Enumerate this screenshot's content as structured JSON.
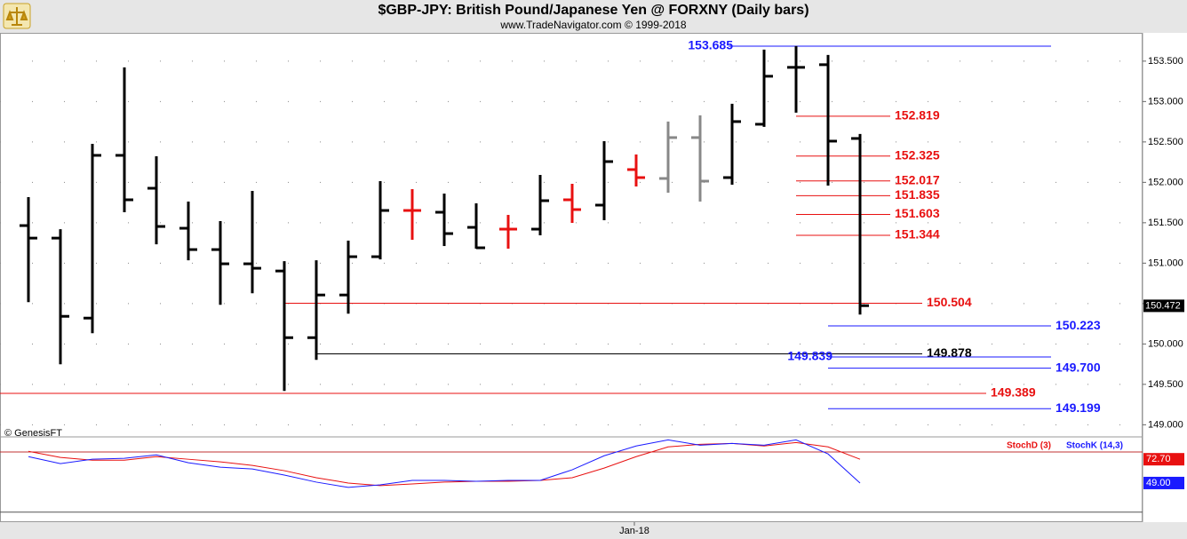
{
  "chart_data": [
    {
      "type": "ohlc",
      "title": "$GBP-JPY:  British Pound/Japanese Yen @ FORXNY  (Daily bars)",
      "subtitle": "www.TradeNavigator.com © 1999-2018",
      "source": "© GenesisFT",
      "categories": [
        null,
        null,
        null,
        null,
        null,
        null,
        null,
        null,
        null,
        null,
        null,
        null,
        null,
        null,
        null,
        null,
        null,
        null,
        null,
        "Jan-18",
        null,
        null,
        null,
        null,
        null,
        null,
        null
      ],
      "open": [
        151.465,
        151.31,
        150.32,
        152.334,
        151.927,
        151.432,
        151.168,
        150.992,
        150.903,
        150.078,
        150.606,
        151.08,
        151.652,
        151.63,
        151.443,
        151.421,
        151.421,
        151.784,
        151.718,
        152.158,
        152.048,
        152.554,
        152.059,
        152.719,
        153.423,
        153.456,
        152.543
      ],
      "high": [
        151.817,
        151.42,
        152.477,
        153.423,
        152.323,
        151.762,
        151.52,
        151.894,
        151.025,
        151.036,
        151.278,
        152.015,
        151.916,
        151.861,
        151.74,
        151.597,
        152.092,
        151.982,
        152.51,
        152.345,
        152.752,
        152.829,
        152.972,
        153.643,
        153.687,
        153.577,
        152.598
      ],
      "low": [
        150.518,
        149.748,
        150.133,
        151.63,
        151.233,
        151.036,
        150.485,
        150.628,
        149.418,
        149.803,
        150.375,
        151.047,
        151.289,
        151.212,
        151.179,
        151.179,
        151.344,
        151.498,
        151.531,
        151.949,
        151.872,
        151.762,
        151.971,
        152.686,
        152.862,
        151.96,
        150.364
      ],
      "close": [
        151.31,
        150.342,
        152.334,
        151.784,
        151.454,
        151.168,
        150.992,
        150.937,
        150.078,
        150.606,
        151.08,
        151.652,
        151.652,
        151.366,
        151.19,
        151.421,
        151.773,
        151.663,
        152.257,
        152.059,
        152.554,
        152.015,
        152.752,
        153.313,
        153.423,
        152.51,
        150.474
      ],
      "bar_colors": [
        "#000000",
        "#000000",
        "#000000",
        "#000000",
        "#000000",
        "#000000",
        "#000000",
        "#000000",
        "#000000",
        "#000000",
        "#000000",
        "#000000",
        "#e81010",
        "#000000",
        "#000000",
        "#e81010",
        "#000000",
        "#e81010",
        "#000000",
        "#e81010",
        "#888888",
        "#888888",
        "#000000",
        "#000000",
        "#000000",
        "#000000",
        "#000000"
      ],
      "ylim": [
        148.85,
        153.85
      ],
      "yticks": [
        {
          "value": 149,
          "label": "149.000"
        },
        {
          "value": 149.5,
          "label": "149.500"
        },
        {
          "value": 150,
          "label": "150.000"
        },
        {
          "value": 150.5,
          "label": "150.500"
        },
        {
          "value": 151,
          "label": "151.000"
        },
        {
          "value": 151.5,
          "label": "151.500"
        },
        {
          "value": 152,
          "label": "152.000"
        },
        {
          "value": 152.5,
          "label": "152.500"
        },
        {
          "value": 153,
          "label": "153.000"
        },
        {
          "value": 153.5,
          "label": "153.500"
        }
      ],
      "last_price": 150.472,
      "levels": [
        {
          "value": 153.685,
          "label": "153.685",
          "color": "#1a1aff"
        },
        {
          "value": 152.819,
          "label": "152.819",
          "color": "#e81010"
        },
        {
          "value": 152.325,
          "label": "152.325",
          "color": "#e81010"
        },
        {
          "value": 152.017,
          "label": "152.017",
          "color": "#e81010"
        },
        {
          "value": 151.835,
          "label": "151.835",
          "color": "#e81010"
        },
        {
          "value": 151.603,
          "label": "151.603",
          "color": "#e81010"
        },
        {
          "value": 151.344,
          "label": "151.344",
          "color": "#e81010"
        },
        {
          "value": 150.504,
          "label": "150.504",
          "color": "#e81010"
        },
        {
          "value": 150.223,
          "label": "150.223",
          "color": "#1a1aff"
        },
        {
          "value": 149.878,
          "label": "149.878",
          "color": "#000000"
        },
        {
          "value": 149.839,
          "label": "149.839",
          "color": "#1a1aff"
        },
        {
          "value": 149.7,
          "label": "149.700",
          "color": "#1a1aff"
        },
        {
          "value": 149.389,
          "label": "149.389",
          "color": "#e81010"
        },
        {
          "value": 149.199,
          "label": "149.199",
          "color": "#1a1aff"
        }
      ]
    },
    {
      "type": "line",
      "ylim": [
        10,
        95
      ],
      "reference_lines": [
        80,
        20
      ],
      "series": [
        {
          "name": "StochD (3)",
          "color": "#e81010",
          "last_label": "72.70",
          "values": [
            80.6,
            74.5,
            71.8,
            71.8,
            75.3,
            72.7,
            70.1,
            66.6,
            61.3,
            54.3,
            49.0,
            46.4,
            48.1,
            49.9,
            50.7,
            50.7,
            51.6,
            54.3,
            63.9,
            75.3,
            85.0,
            87.6,
            88.5,
            85.9,
            89.4,
            85.0,
            72.7
          ]
        },
        {
          "name": "StochK (14,3)",
          "color": "#1a1aff",
          "last_label": "49.00",
          "values": [
            75.3,
            68.3,
            72.7,
            73.6,
            77.1,
            69.2,
            64.8,
            63.0,
            56.9,
            49.9,
            44.6,
            47.2,
            51.6,
            51.6,
            50.7,
            51.6,
            51.6,
            62.2,
            76.2,
            85.9,
            92.0,
            86.7,
            88.5,
            86.7,
            92.0,
            78.0,
            49.0
          ]
        }
      ]
    }
  ]
}
